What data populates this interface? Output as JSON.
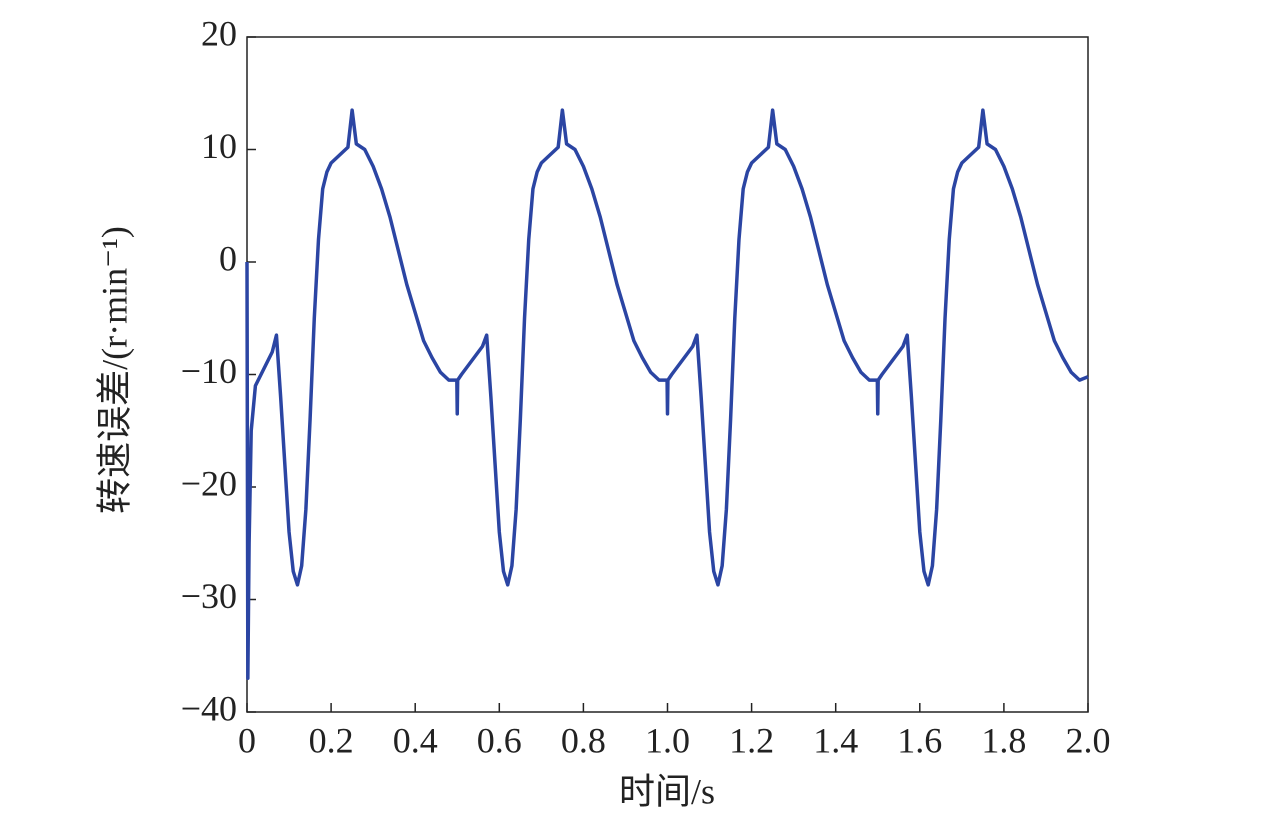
{
  "chart_data": {
    "type": "line",
    "xlabel": "时间/s",
    "ylabel": "转速误差/(r·min⁻¹)",
    "xlim": [
      0,
      2
    ],
    "ylim": [
      -40,
      20
    ],
    "xticks": [
      0,
      0.2,
      0.4,
      0.6,
      0.8,
      {
        "value": 1,
        "label": "1.0"
      },
      1.2,
      1.4,
      1.6,
      1.8,
      {
        "value": 2,
        "label": "2.0"
      }
    ],
    "yticks": [
      {
        "value": -40,
        "label": "−40"
      },
      {
        "value": -30,
        "label": "−30"
      },
      {
        "value": -20,
        "label": "−20"
      },
      {
        "value": -10,
        "label": "−10"
      },
      0,
      10,
      20
    ],
    "x": [
      0,
      0.002,
      0.005,
      0.01,
      0.02,
      0.04,
      0.06,
      0.07,
      0.08,
      0.09,
      0.1,
      0.11,
      0.12,
      0.13,
      0.14,
      0.15,
      0.16,
      0.17,
      0.18,
      0.19,
      0.2,
      0.22,
      0.24,
      0.25,
      0.26,
      0.28,
      0.3,
      0.32,
      0.34,
      0.36,
      0.38,
      0.4,
      0.42,
      0.44,
      0.46,
      0.48,
      0.499,
      0.5,
      0.501,
      0.51,
      0.53,
      0.55,
      0.56,
      0.57,
      0.58,
      0.59,
      0.6,
      0.61,
      0.62,
      0.63,
      0.64,
      0.65,
      0.66,
      0.67,
      0.68,
      0.69,
      0.7,
      0.72,
      0.74,
      0.75,
      0.76,
      0.78,
      0.8,
      0.82,
      0.84,
      0.86,
      0.88,
      0.9,
      0.92,
      0.94,
      0.96,
      0.98,
      0.999,
      1.0,
      1.001,
      1.01,
      1.03,
      1.05,
      1.06,
      1.07,
      1.08,
      1.09,
      1.1,
      1.11,
      1.12,
      1.13,
      1.14,
      1.15,
      1.16,
      1.17,
      1.18,
      1.19,
      1.2,
      1.22,
      1.24,
      1.25,
      1.26,
      1.28,
      1.3,
      1.32,
      1.34,
      1.36,
      1.38,
      1.4,
      1.42,
      1.44,
      1.46,
      1.48,
      1.499,
      1.5,
      1.501,
      1.51,
      1.53,
      1.55,
      1.56,
      1.57,
      1.58,
      1.59,
      1.6,
      1.61,
      1.62,
      1.63,
      1.64,
      1.65,
      1.66,
      1.67,
      1.68,
      1.69,
      1.7,
      1.72,
      1.74,
      1.75,
      1.76,
      1.78,
      1.8,
      1.82,
      1.84,
      1.86,
      1.88,
      1.9,
      1.92,
      1.94,
      1.96,
      1.98,
      2.0
    ],
    "series": [
      {
        "color": "#2b45a3",
        "values": [
          0,
          -37,
          -25,
          -15,
          -11,
          -9.5,
          -8,
          -6.5,
          -12,
          -18,
          -24,
          -27.5,
          -28.7,
          -27,
          -22,
          -14,
          -5,
          2,
          6.5,
          8,
          8.8,
          9.5,
          10.2,
          13.5,
          10.5,
          10,
          8.5,
          6.5,
          4,
          1,
          -2,
          -4.5,
          -7,
          -8.5,
          -9.8,
          -10.5,
          -10.5,
          -13.5,
          -10.5,
          -10,
          -9,
          -8,
          -7.5,
          -6.5,
          -12,
          -18,
          -24,
          -27.5,
          -28.7,
          -27,
          -22,
          -14,
          -5,
          2,
          6.5,
          8,
          8.8,
          9.5,
          10.2,
          13.5,
          10.5,
          10,
          8.5,
          6.5,
          4,
          1,
          -2,
          -4.5,
          -7,
          -8.5,
          -9.8,
          -10.5,
          -10.5,
          -13.5,
          -10.5,
          -10,
          -9,
          -8,
          -7.5,
          -6.5,
          -12,
          -18,
          -24,
          -27.5,
          -28.7,
          -27,
          -22,
          -14,
          -5,
          2,
          6.5,
          8,
          8.8,
          9.5,
          10.2,
          13.5,
          10.5,
          10,
          8.5,
          6.5,
          4,
          1,
          -2,
          -4.5,
          -7,
          -8.5,
          -9.8,
          -10.5,
          -10.5,
          -13.5,
          -10.5,
          -10,
          -9,
          -8,
          -7.5,
          -6.5,
          -12,
          -18,
          -24,
          -27.5,
          -28.7,
          -27,
          -22,
          -14,
          -5,
          2,
          6.5,
          8,
          8.8,
          9.5,
          10.2,
          13.5,
          10.5,
          10,
          8.5,
          6.5,
          4,
          1,
          -2,
          -4.5,
          -7,
          -8.5,
          -9.8,
          -10.5,
          -10.2
        ]
      }
    ]
  }
}
